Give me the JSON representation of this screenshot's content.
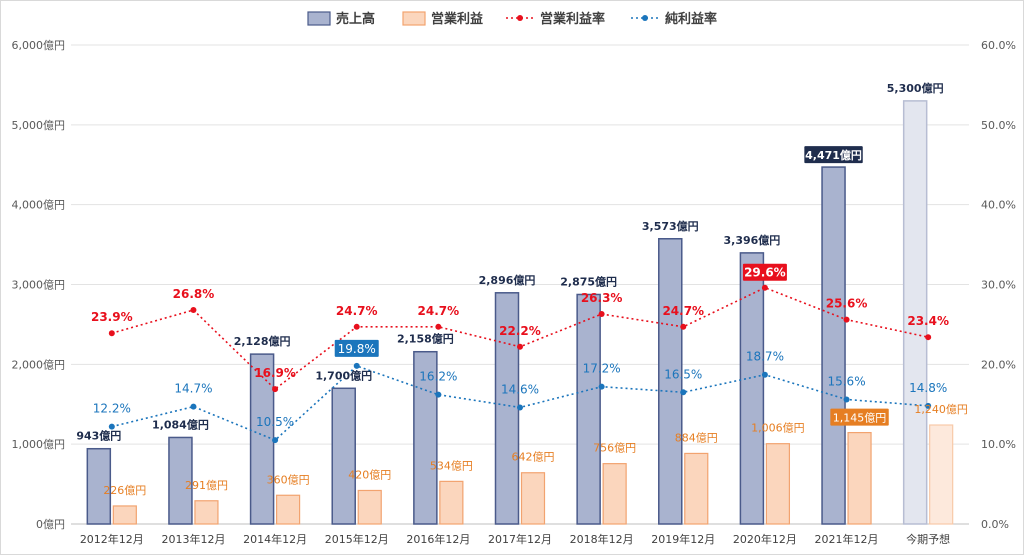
{
  "chart_data": {
    "type": "bar",
    "categories": [
      "2012年12月",
      "2013年12月",
      "2014年12月",
      "2015年12月",
      "2016年12月",
      "2017年12月",
      "2018年12月",
      "2019年12月",
      "2020年12月",
      "2021年12月",
      "今期予想"
    ],
    "series": [
      {
        "name": "売上高",
        "type": "bar",
        "axis": "left",
        "values": [
          943,
          1084,
          2128,
          1700,
          2158,
          2896,
          2875,
          3573,
          3396,
          4471,
          5300
        ],
        "labels": [
          "943億円",
          "1,084億円",
          "2,128億円",
          "1,700億円",
          "2,158億円",
          "2,896億円",
          "2,875億円",
          "3,573億円",
          "3,396億円",
          "4,471億円",
          "5,300億円"
        ]
      },
      {
        "name": "営業利益",
        "type": "bar",
        "axis": "left",
        "values": [
          226,
          291,
          360,
          420,
          534,
          642,
          756,
          884,
          1006,
          1145,
          1240
        ],
        "labels": [
          "226億円",
          "291億円",
          "360億円",
          "420億円",
          "534億円",
          "642億円",
          "756億円",
          "884億円",
          "1,006億円",
          "1,145億円",
          "1,240億円"
        ]
      },
      {
        "name": "営業利益率",
        "type": "line",
        "axis": "right",
        "values": [
          23.9,
          26.8,
          16.9,
          24.7,
          24.7,
          22.2,
          26.3,
          24.7,
          29.6,
          25.6,
          23.4
        ],
        "labels": [
          "23.9%",
          "26.8%",
          "16.9%",
          "24.7%",
          "24.7%",
          "22.2%",
          "26.3%",
          "24.7%",
          "29.6%",
          "25.6%",
          "23.4%"
        ]
      },
      {
        "name": "純利益率",
        "type": "line",
        "axis": "right",
        "values": [
          12.2,
          14.7,
          10.5,
          19.8,
          16.2,
          14.6,
          17.2,
          16.5,
          18.7,
          15.6,
          14.8
        ],
        "labels": [
          "12.2%",
          "14.7%",
          "10.5%",
          "19.8%",
          "16.2%",
          "14.6%",
          "17.2%",
          "16.5%",
          "18.7%",
          "15.6%",
          "14.8%"
        ]
      }
    ],
    "left_axis": {
      "ylim": [
        0,
        6000
      ],
      "ticks": [
        "0億円",
        "1,000億円",
        "2,000億円",
        "3,000億円",
        "4,000億円",
        "5,000億円",
        "6,000億円"
      ]
    },
    "right_axis": {
      "ylim": [
        0,
        60
      ],
      "ticks": [
        "0.0%",
        "10.0%",
        "20.0%",
        "30.0%",
        "40.0%",
        "50.0%",
        "60.0%"
      ]
    },
    "grid": true,
    "legend_position": "top-center",
    "colors": {
      "sales": "#4a5a8a",
      "sales_fill": "#a9b3cf",
      "op": "#f2a36f",
      "op_fill": "#fbd6bd",
      "opr": "#e8101d",
      "net": "#1b75bc",
      "forecast_fill": "#e3e6ef",
      "forecast_op_fill": "#fde9dc"
    },
    "highlights": {
      "sales_index": 9,
      "op_index": 9,
      "opr_index": 8,
      "net_index": 3
    }
  }
}
